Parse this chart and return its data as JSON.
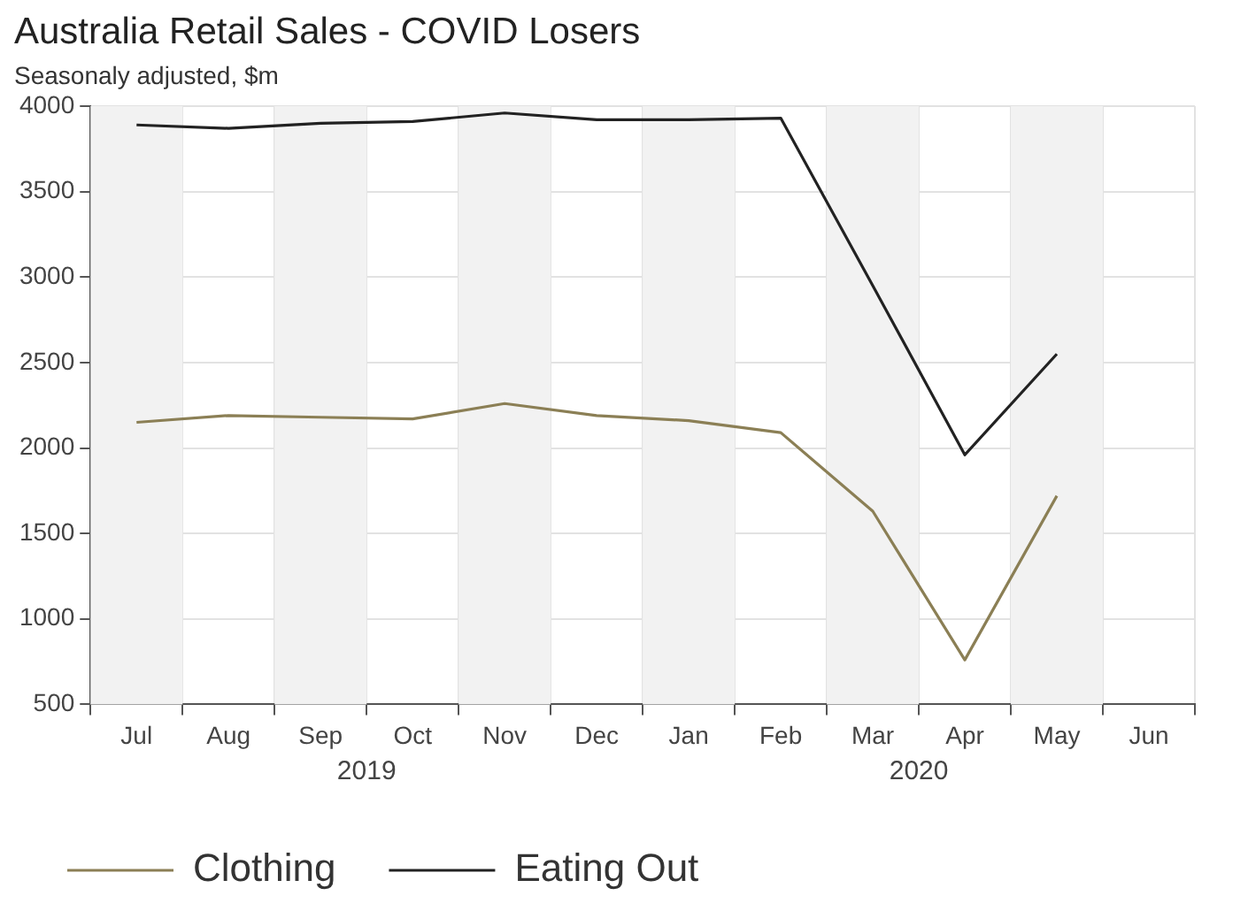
{
  "chart_data": {
    "type": "line",
    "title": "Australia Retail Sales - COVID Losers",
    "subtitle": "Seasonaly adjusted, $m",
    "categories": [
      "Jul",
      "Aug",
      "Sep",
      "Oct",
      "Nov",
      "Dec",
      "Jan",
      "Feb",
      "Mar",
      "Apr",
      "May",
      "Jun"
    ],
    "series": [
      {
        "name": "Clothing",
        "color": "#8b7f55",
        "values": [
          2150,
          2190,
          2180,
          2170,
          2260,
          2190,
          2160,
          2090,
          1630,
          760,
          1720,
          null
        ]
      },
      {
        "name": "Eating Out",
        "color": "#222222",
        "values": [
          3890,
          3870,
          3900,
          3910,
          3960,
          3920,
          3920,
          3930,
          2950,
          1960,
          2550,
          null
        ]
      }
    ],
    "ylim": [
      500,
      4000
    ],
    "yticks": [
      500,
      1000,
      1500,
      2000,
      2500,
      3000,
      3500,
      4000
    ],
    "bands": [
      {
        "axis": "x",
        "from": "Jul",
        "to": "Jul",
        "color": "#f2f2f2"
      },
      {
        "axis": "x",
        "from": "Sep",
        "to": "Sep",
        "color": "#f2f2f2"
      },
      {
        "axis": "x",
        "from": "Nov",
        "to": "Nov",
        "color": "#f2f2f2"
      },
      {
        "axis": "x",
        "from": "Jan",
        "to": "Jan",
        "color": "#f2f2f2"
      },
      {
        "axis": "x",
        "from": "Mar",
        "to": "Mar",
        "color": "#f2f2f2"
      },
      {
        "axis": "x",
        "from": "May",
        "to": "May",
        "color": "#f2f2f2"
      }
    ],
    "annotations": [
      "2019",
      "2020"
    ],
    "grid": true,
    "legend": "bottom left",
    "marker": "none",
    "line_style": "solid"
  }
}
